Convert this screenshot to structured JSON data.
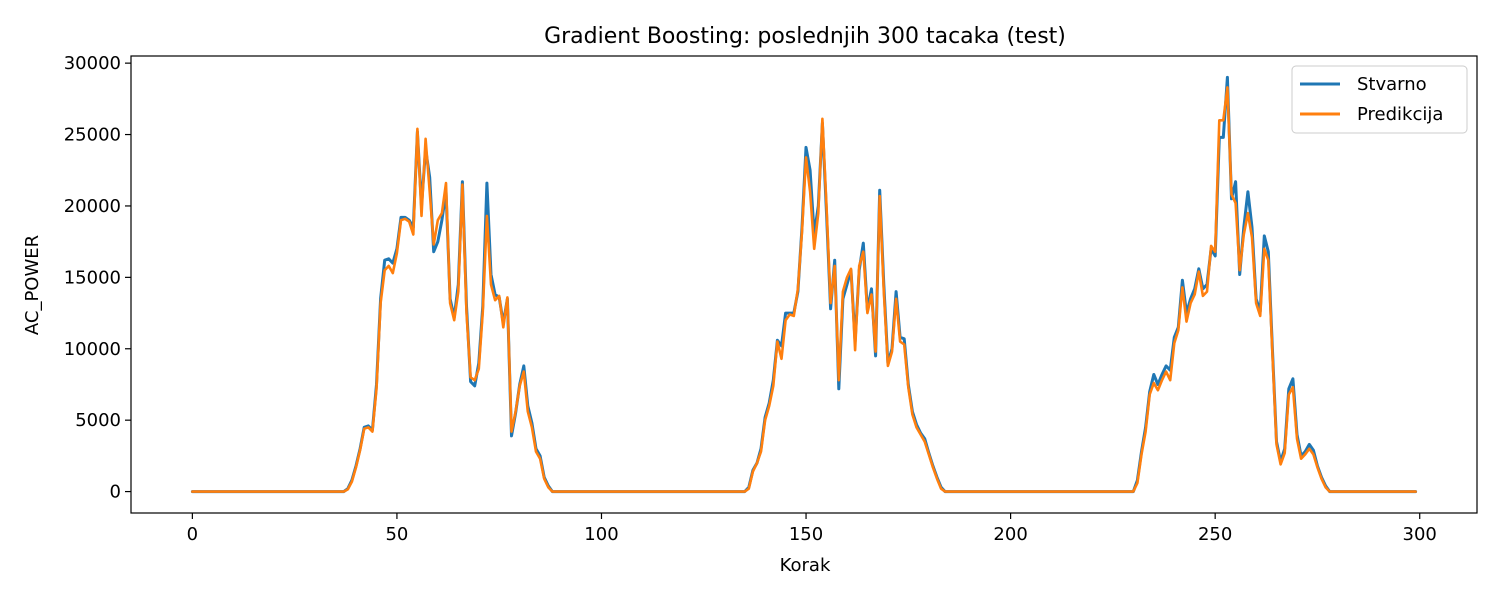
{
  "chart_data": {
    "type": "line",
    "title": "Gradient Boosting: poslednjih 300 tacaka (test)",
    "xlabel": "Korak",
    "ylabel": "AC_POWER",
    "xlim": [
      -15,
      314
    ],
    "ylim": [
      -1500,
      30500
    ],
    "xticks": [
      0,
      50,
      100,
      150,
      200,
      250,
      300
    ],
    "yticks": [
      0,
      5000,
      10000,
      15000,
      20000,
      25000,
      30000
    ],
    "grid": false,
    "legend_position": "top-right",
    "series": [
      {
        "name": "Stvarno",
        "color": "#1f77b4",
        "points": [
          [
            0,
            0
          ],
          [
            37,
            0
          ],
          [
            38,
            200
          ],
          [
            39,
            800
          ],
          [
            40,
            1800
          ],
          [
            41,
            3000
          ],
          [
            42,
            4500
          ],
          [
            43,
            4600
          ],
          [
            44,
            4300
          ],
          [
            45,
            7500
          ],
          [
            46,
            13500
          ],
          [
            47,
            16200
          ],
          [
            48,
            16300
          ],
          [
            49,
            16000
          ],
          [
            50,
            17000
          ],
          [
            51,
            19200
          ],
          [
            52,
            19200
          ],
          [
            53,
            19000
          ],
          [
            54,
            18500
          ],
          [
            55,
            25200
          ],
          [
            56,
            20000
          ],
          [
            57,
            24000
          ],
          [
            58,
            22000
          ],
          [
            59,
            16800
          ],
          [
            60,
            17500
          ],
          [
            61,
            19000
          ],
          [
            62,
            21000
          ],
          [
            63,
            13500
          ],
          [
            64,
            12200
          ],
          [
            65,
            14500
          ],
          [
            66,
            21700
          ],
          [
            67,
            13000
          ],
          [
            68,
            7700
          ],
          [
            69,
            7400
          ],
          [
            70,
            9000
          ],
          [
            71,
            13000
          ],
          [
            72,
            21600
          ],
          [
            73,
            15200
          ],
          [
            74,
            13800
          ],
          [
            75,
            13600
          ],
          [
            76,
            11800
          ],
          [
            77,
            13500
          ],
          [
            78,
            3900
          ],
          [
            79,
            5500
          ],
          [
            80,
            7500
          ],
          [
            81,
            8800
          ],
          [
            82,
            6000
          ],
          [
            83,
            4800
          ],
          [
            84,
            3000
          ],
          [
            85,
            2500
          ],
          [
            86,
            1000
          ],
          [
            87,
            400
          ],
          [
            88,
            0
          ],
          [
            135,
            0
          ],
          [
            136,
            300
          ],
          [
            137,
            1500
          ],
          [
            138,
            2000
          ],
          [
            139,
            3000
          ],
          [
            140,
            5200
          ],
          [
            141,
            6200
          ],
          [
            142,
            7800
          ],
          [
            143,
            10600
          ],
          [
            144,
            10200
          ],
          [
            145,
            12500
          ],
          [
            146,
            12500
          ],
          [
            147,
            12500
          ],
          [
            148,
            14000
          ],
          [
            149,
            18500
          ],
          [
            150,
            24100
          ],
          [
            151,
            22500
          ],
          [
            152,
            18000
          ],
          [
            153,
            20000
          ],
          [
            154,
            25800
          ],
          [
            155,
            19500
          ],
          [
            156,
            12800
          ],
          [
            157,
            16200
          ],
          [
            158,
            7200
          ],
          [
            159,
            13500
          ],
          [
            160,
            14500
          ],
          [
            161,
            15500
          ],
          [
            162,
            10500
          ],
          [
            163,
            15500
          ],
          [
            164,
            17400
          ],
          [
            165,
            12700
          ],
          [
            166,
            14200
          ],
          [
            167,
            9500
          ],
          [
            168,
            21100
          ],
          [
            169,
            14500
          ],
          [
            170,
            9000
          ],
          [
            171,
            10000
          ],
          [
            172,
            14000
          ],
          [
            173,
            10800
          ],
          [
            174,
            10700
          ],
          [
            175,
            7500
          ],
          [
            176,
            5600
          ],
          [
            177,
            4700
          ],
          [
            178,
            4100
          ],
          [
            179,
            3700
          ],
          [
            180,
            2700
          ],
          [
            181,
            1800
          ],
          [
            182,
            1000
          ],
          [
            183,
            300
          ],
          [
            184,
            0
          ],
          [
            230,
            0
          ],
          [
            231,
            800
          ],
          [
            232,
            2800
          ],
          [
            233,
            4500
          ],
          [
            234,
            7000
          ],
          [
            235,
            8200
          ],
          [
            236,
            7500
          ],
          [
            237,
            8200
          ],
          [
            238,
            8800
          ],
          [
            239,
            8500
          ],
          [
            240,
            10800
          ],
          [
            241,
            11500
          ],
          [
            242,
            14800
          ],
          [
            243,
            12500
          ],
          [
            244,
            13500
          ],
          [
            245,
            14200
          ],
          [
            246,
            15600
          ],
          [
            247,
            14200
          ],
          [
            248,
            14500
          ],
          [
            249,
            17000
          ],
          [
            250,
            16500
          ],
          [
            251,
            24800
          ],
          [
            252,
            24800
          ],
          [
            253,
            29000
          ],
          [
            254,
            20500
          ],
          [
            255,
            21700
          ],
          [
            256,
            15200
          ],
          [
            257,
            18500
          ],
          [
            258,
            21000
          ],
          [
            259,
            18500
          ],
          [
            260,
            13500
          ],
          [
            261,
            12600
          ],
          [
            262,
            17900
          ],
          [
            263,
            16800
          ],
          [
            264,
            10000
          ],
          [
            265,
            3500
          ],
          [
            266,
            2100
          ],
          [
            267,
            3000
          ],
          [
            268,
            7200
          ],
          [
            269,
            7900
          ],
          [
            270,
            4000
          ],
          [
            271,
            2500
          ],
          [
            272,
            2800
          ],
          [
            273,
            3300
          ],
          [
            274,
            2900
          ],
          [
            275,
            1800
          ],
          [
            276,
            1000
          ],
          [
            277,
            400
          ],
          [
            278,
            0
          ],
          [
            299,
            0
          ]
        ]
      },
      {
        "name": "Predikcija",
        "color": "#ff7f0e",
        "points": [
          [
            0,
            0
          ],
          [
            37,
            0
          ],
          [
            38,
            150
          ],
          [
            39,
            700
          ],
          [
            40,
            1700
          ],
          [
            41,
            2900
          ],
          [
            42,
            4400
          ],
          [
            43,
            4500
          ],
          [
            44,
            4200
          ],
          [
            45,
            7200
          ],
          [
            46,
            13200
          ],
          [
            47,
            15500
          ],
          [
            48,
            15800
          ],
          [
            49,
            15300
          ],
          [
            50,
            16700
          ],
          [
            51,
            19000
          ],
          [
            52,
            19100
          ],
          [
            53,
            18900
          ],
          [
            54,
            18000
          ],
          [
            55,
            25400
          ],
          [
            56,
            19300
          ],
          [
            57,
            24700
          ],
          [
            58,
            21000
          ],
          [
            59,
            17300
          ],
          [
            60,
            19000
          ],
          [
            61,
            19500
          ],
          [
            62,
            21600
          ],
          [
            63,
            13200
          ],
          [
            64,
            12000
          ],
          [
            65,
            14000
          ],
          [
            66,
            21500
          ],
          [
            67,
            12500
          ],
          [
            68,
            8000
          ],
          [
            69,
            7800
          ],
          [
            70,
            8600
          ],
          [
            71,
            12600
          ],
          [
            72,
            19300
          ],
          [
            73,
            14500
          ],
          [
            74,
            13400
          ],
          [
            75,
            13700
          ],
          [
            76,
            11500
          ],
          [
            77,
            13600
          ],
          [
            78,
            4200
          ],
          [
            79,
            5600
          ],
          [
            80,
            7400
          ],
          [
            81,
            8400
          ],
          [
            82,
            5600
          ],
          [
            83,
            4500
          ],
          [
            84,
            2800
          ],
          [
            85,
            2300
          ],
          [
            86,
            900
          ],
          [
            87,
            300
          ],
          [
            88,
            0
          ],
          [
            135,
            0
          ],
          [
            136,
            200
          ],
          [
            137,
            1400
          ],
          [
            138,
            2000
          ],
          [
            139,
            2800
          ],
          [
            140,
            5000
          ],
          [
            141,
            6000
          ],
          [
            142,
            7400
          ],
          [
            143,
            10500
          ],
          [
            144,
            9300
          ],
          [
            145,
            12000
          ],
          [
            146,
            12400
          ],
          [
            147,
            12300
          ],
          [
            148,
            14200
          ],
          [
            149,
            18200
          ],
          [
            150,
            23400
          ],
          [
            151,
            21000
          ],
          [
            152,
            17000
          ],
          [
            153,
            19500
          ],
          [
            154,
            26100
          ],
          [
            155,
            20000
          ],
          [
            156,
            13200
          ],
          [
            157,
            15800
          ],
          [
            158,
            7800
          ],
          [
            159,
            14000
          ],
          [
            160,
            15000
          ],
          [
            161,
            15600
          ],
          [
            162,
            9900
          ],
          [
            163,
            15800
          ],
          [
            164,
            16800
          ],
          [
            165,
            12500
          ],
          [
            166,
            13800
          ],
          [
            167,
            9800
          ],
          [
            168,
            20700
          ],
          [
            169,
            14000
          ],
          [
            170,
            8800
          ],
          [
            171,
            9800
          ],
          [
            172,
            13500
          ],
          [
            173,
            10500
          ],
          [
            174,
            10300
          ],
          [
            175,
            7300
          ],
          [
            176,
            5400
          ],
          [
            177,
            4500
          ],
          [
            178,
            4000
          ],
          [
            179,
            3500
          ],
          [
            180,
            2600
          ],
          [
            181,
            1700
          ],
          [
            182,
            900
          ],
          [
            183,
            200
          ],
          [
            184,
            0
          ],
          [
            230,
            0
          ],
          [
            231,
            600
          ],
          [
            232,
            2600
          ],
          [
            233,
            4200
          ],
          [
            234,
            6800
          ],
          [
            235,
            7600
          ],
          [
            236,
            7100
          ],
          [
            237,
            7800
          ],
          [
            238,
            8400
          ],
          [
            239,
            7800
          ],
          [
            240,
            10400
          ],
          [
            241,
            11300
          ],
          [
            242,
            14300
          ],
          [
            243,
            11900
          ],
          [
            244,
            13200
          ],
          [
            245,
            13800
          ],
          [
            246,
            15400
          ],
          [
            247,
            13700
          ],
          [
            248,
            14000
          ],
          [
            249,
            17200
          ],
          [
            250,
            16800
          ],
          [
            251,
            26000
          ],
          [
            252,
            26000
          ],
          [
            253,
            28300
          ],
          [
            254,
            20800
          ],
          [
            255,
            20200
          ],
          [
            256,
            15500
          ],
          [
            257,
            18000
          ],
          [
            258,
            19500
          ],
          [
            259,
            17800
          ],
          [
            260,
            13200
          ],
          [
            261,
            12300
          ],
          [
            262,
            17000
          ],
          [
            263,
            16200
          ],
          [
            264,
            9700
          ],
          [
            265,
            3300
          ],
          [
            266,
            1900
          ],
          [
            267,
            2700
          ],
          [
            268,
            6800
          ],
          [
            269,
            7300
          ],
          [
            270,
            3700
          ],
          [
            271,
            2300
          ],
          [
            272,
            2600
          ],
          [
            273,
            3000
          ],
          [
            274,
            2600
          ],
          [
            275,
            1700
          ],
          [
            276,
            900
          ],
          [
            277,
            300
          ],
          [
            278,
            0
          ],
          [
            299,
            0
          ]
        ]
      }
    ]
  }
}
